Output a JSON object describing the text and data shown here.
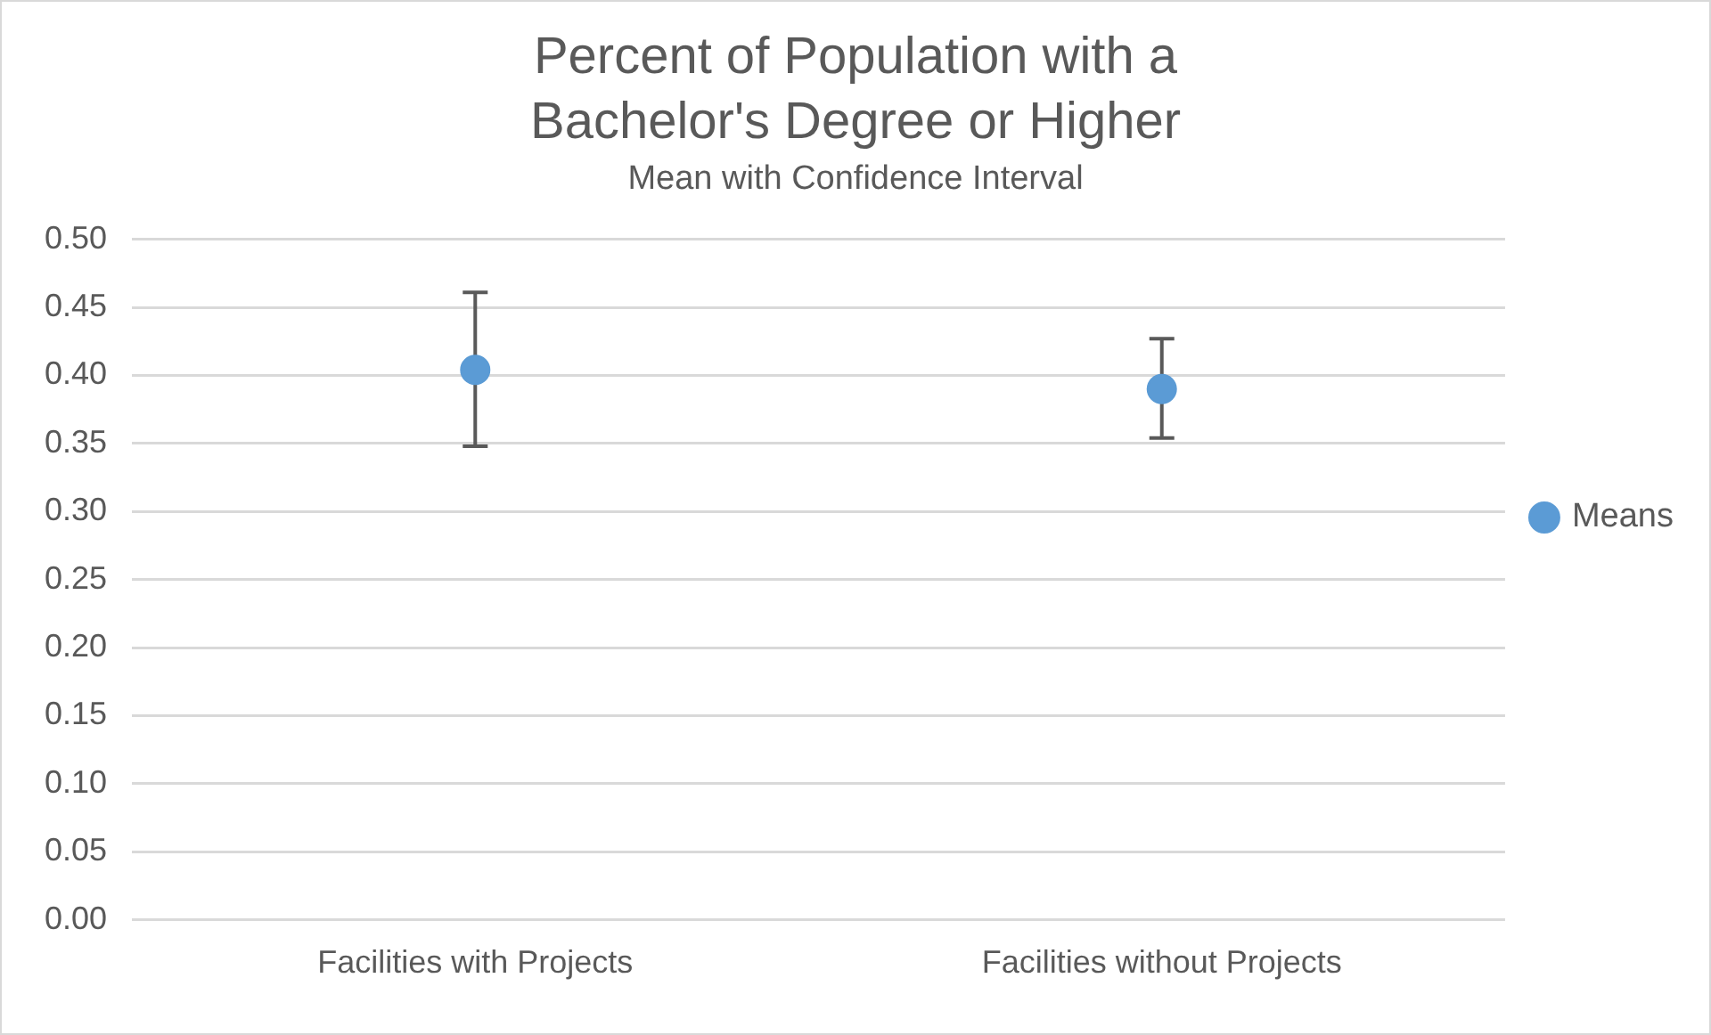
{
  "chart_data": {
    "type": "scatter",
    "title": "Percent of Population with a Bachelor's Degree or Higher",
    "subtitle": "Mean with Confidence Interval",
    "categories": [
      "Facilities with Projects",
      "Facilities without Projects"
    ],
    "series": [
      {
        "name": "Means",
        "color": "#5b9bd5",
        "values": [
          0.404,
          0.39
        ],
        "errors": [
          [
            0.348,
            0.461
          ],
          [
            0.354,
            0.427
          ]
        ]
      }
    ],
    "ylim": [
      0,
      0.5
    ],
    "yticks": [
      {
        "value": 0,
        "label": "0.00"
      },
      {
        "value": 0.05,
        "label": "0.05"
      },
      {
        "value": 0.1,
        "label": "0.10"
      },
      {
        "value": 0.15,
        "label": "0.15"
      },
      {
        "value": 0.2,
        "label": "0.20"
      },
      {
        "value": 0.25,
        "label": "0.25"
      },
      {
        "value": 0.3,
        "label": "0.30"
      },
      {
        "value": 0.35,
        "label": "0.35"
      },
      {
        "value": 0.4,
        "label": "0.40"
      },
      {
        "value": 0.45,
        "label": "0.45"
      },
      {
        "value": 0.5,
        "label": "0.50"
      }
    ],
    "grid": "y",
    "legend": "right",
    "marker": "circle"
  }
}
